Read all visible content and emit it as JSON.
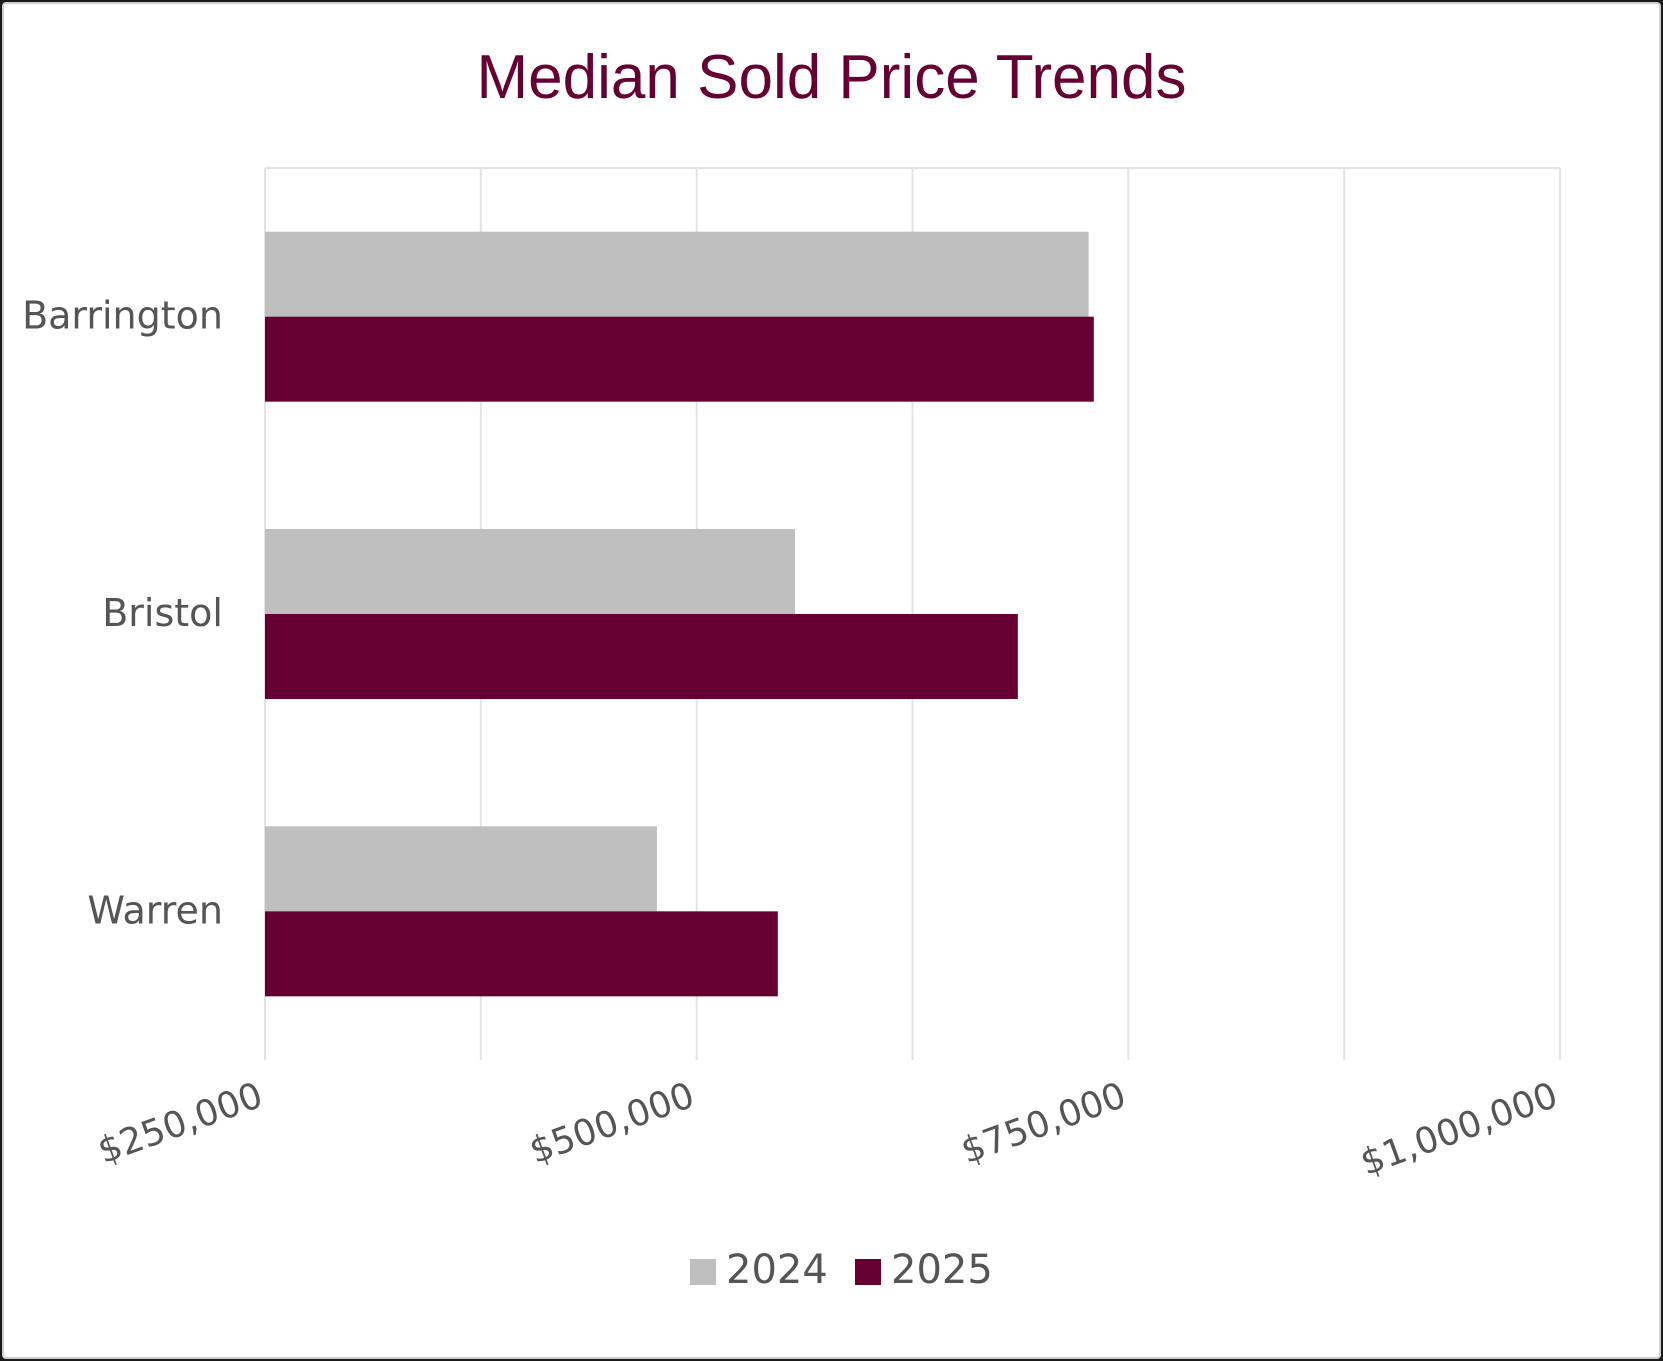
{
  "chart_data": {
    "type": "bar",
    "orientation": "horizontal",
    "title": "Median Sold Price Trends",
    "xlabel": "",
    "ylabel": "",
    "categories": [
      "Barrington",
      "Bristol",
      "Warren"
    ],
    "series": [
      {
        "name": "2024",
        "values": [
          727000,
          557000,
          477000
        ]
      },
      {
        "name": "2025",
        "values": [
          730000,
          686000,
          547000
        ]
      }
    ],
    "xlim": [
      250000,
      1000000
    ],
    "x_ticks": [
      250000,
      500000,
      750000,
      1000000
    ],
    "x_tick_labels": [
      "$250,000",
      "$500,000",
      "$750,000",
      "$1,000,000"
    ],
    "grid": true,
    "legend_position": "bottom",
    "colors": {
      "2024": "#bfbfbf",
      "2025": "#660033",
      "title": "#660033",
      "text": "#555555",
      "grid": "#e3e3e3"
    }
  }
}
